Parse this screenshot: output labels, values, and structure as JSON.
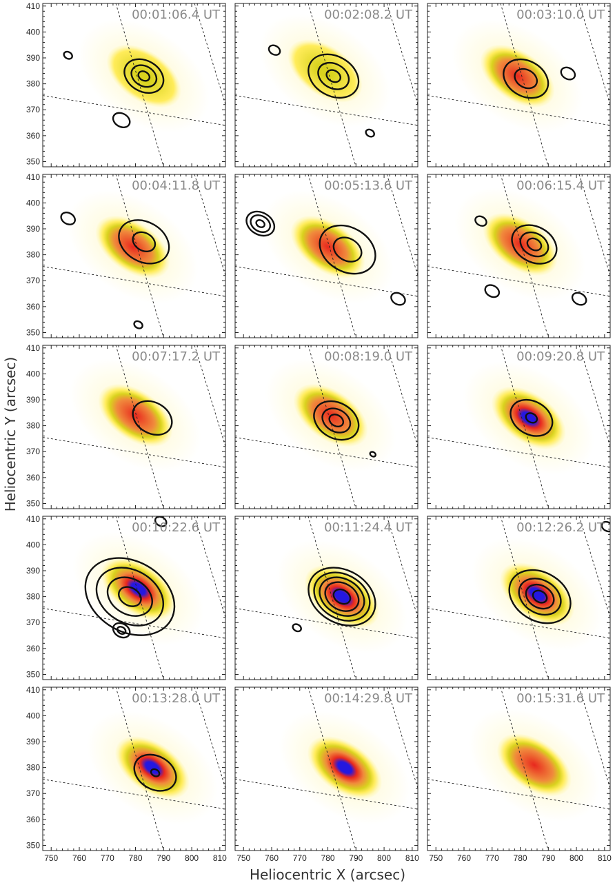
{
  "figure": {
    "xlabel": "Heliocentric X (arcsec)",
    "ylabel": "Heliocentric Y (arcsec)",
    "xticks": [
      "750",
      "760",
      "770",
      "780",
      "790",
      "800",
      "810"
    ],
    "yticks": [
      "410",
      "400",
      "390",
      "380",
      "370",
      "360",
      "350"
    ],
    "colormap": [
      "#ffffff",
      "#fff8c0",
      "#ffec5a",
      "#d9d21e",
      "#f08a3c",
      "#e8281e",
      "#2418e0"
    ],
    "panels": [
      {
        "time": "00:01:06.4 UT",
        "blob": {
          "cx": 783,
          "cy": 383,
          "peak": 0.15
        },
        "contours": [
          {
            "cx": 783,
            "cy": 383,
            "r": [
              2,
              4.5,
              7
            ]
          },
          {
            "cx": 756,
            "cy": 391,
            "r": [
              1.5
            ]
          },
          {
            "cx": 775,
            "cy": 366,
            "r": [
              3
            ]
          }
        ]
      },
      {
        "time": "00:02:08.2 UT",
        "blob": {
          "cx": 779,
          "cy": 385,
          "peak": 0.3
        },
        "contours": [
          {
            "cx": 782,
            "cy": 383,
            "r": [
              2.5,
              5.5,
              9
            ]
          },
          {
            "cx": 761,
            "cy": 393,
            "r": [
              2
            ]
          },
          {
            "cx": 795,
            "cy": 361,
            "r": [
              1.5
            ]
          }
        ]
      },
      {
        "time": "00:03:10.0 UT",
        "blob": {
          "cx": 779,
          "cy": 383,
          "peak": 0.68
        },
        "contours": [
          {
            "cx": 782,
            "cy": 382,
            "r": [
              4,
              8
            ]
          },
          {
            "cx": 797,
            "cy": 384,
            "r": [
              2.5
            ]
          }
        ]
      },
      {
        "time": "00:04:11.8 UT",
        "blob": {
          "cx": 779,
          "cy": 383,
          "peak": 0.72
        },
        "contours": [
          {
            "cx": 783,
            "cy": 385,
            "r": [
              4,
              9
            ]
          },
          {
            "cx": 756,
            "cy": 394,
            "r": [
              2.5
            ]
          },
          {
            "cx": 781,
            "cy": 353,
            "r": [
              1.5
            ]
          }
        ]
      },
      {
        "time": "00:05:13.6 UT",
        "blob": {
          "cx": 780,
          "cy": 383,
          "peak": 0.72
        },
        "contours": [
          {
            "cx": 787,
            "cy": 382,
            "r": [
              5,
              10
            ]
          },
          {
            "cx": 756,
            "cy": 392,
            "r": [
              1.5,
              3.5,
              5
            ]
          },
          {
            "cx": 805,
            "cy": 363,
            "r": [
              2.5
            ]
          }
        ]
      },
      {
        "time": "00:06:15.4 UT",
        "blob": {
          "cx": 780,
          "cy": 384,
          "peak": 0.74
        },
        "contours": [
          {
            "cx": 785,
            "cy": 384,
            "r": [
              2.5,
              5,
              8
            ]
          },
          {
            "cx": 766,
            "cy": 393,
            "r": [
              2
            ]
          },
          {
            "cx": 770,
            "cy": 366,
            "r": [
              2.5
            ]
          },
          {
            "cx": 801,
            "cy": 363,
            "r": [
              2.5
            ]
          }
        ]
      },
      {
        "time": "00:07:17.2 UT",
        "blob": {
          "cx": 780,
          "cy": 384,
          "peak": 0.86
        },
        "contours": [
          {
            "cx": 786,
            "cy": 383,
            "r": [
              7
            ]
          }
        ]
      },
      {
        "time": "00:08:19.0 UT",
        "blob": {
          "cx": 781,
          "cy": 384,
          "peak": 0.82
        },
        "contours": [
          {
            "cx": 783,
            "cy": 382,
            "r": [
              2.5,
              5,
              8
            ]
          },
          {
            "cx": 796,
            "cy": 369,
            "r": [
              1
            ]
          }
        ]
      },
      {
        "time": "00:09:20.8 UT",
        "blob": {
          "cx": 783,
          "cy": 383,
          "peak": 0.9
        },
        "contours": [
          {
            "cx": 784,
            "cy": 383,
            "r": [
              2,
              7.5
            ]
          }
        ]
      },
      {
        "time": "00:10:22.6 UT",
        "blob": {
          "cx": 781,
          "cy": 383,
          "peak": 0.88
        },
        "contours": [
          {
            "cx": 778,
            "cy": 380,
            "r": [
              4,
              8,
              12,
              16
            ]
          },
          {
            "cx": 775,
            "cy": 367,
            "r": [
              1.5,
              3
            ]
          },
          {
            "cx": 789,
            "cy": 409,
            "r": [
              2
            ]
          }
        ]
      },
      {
        "time": "00:11:24.4 UT",
        "blob": {
          "cx": 785,
          "cy": 380,
          "peak": 1.0
        },
        "contours": [
          {
            "cx": 785,
            "cy": 380,
            "r": [
              3,
              6,
              8,
              10,
              12
            ]
          },
          {
            "cx": 769,
            "cy": 368,
            "r": [
              1.5
            ]
          }
        ]
      },
      {
        "time": "00:12:26.2 UT",
        "blob": {
          "cx": 786,
          "cy": 381,
          "peak": 1.0
        },
        "contours": [
          {
            "cx": 787,
            "cy": 380,
            "r": [
              2.5,
              5,
              7.5,
              11
            ]
          },
          {
            "cx": 811,
            "cy": 407,
            "r": [
              2
            ]
          }
        ]
      },
      {
        "time": "00:13:28.0 UT",
        "blob": {
          "cx": 786,
          "cy": 380,
          "peak": 0.98
        },
        "contours": [
          {
            "cx": 787,
            "cy": 378,
            "r": [
              1.5,
              7.5
            ]
          }
        ]
      },
      {
        "time": "00:14:29.8 UT",
        "blob": {
          "cx": 786,
          "cy": 380,
          "peak": 0.96
        },
        "contours": []
      },
      {
        "time": "00:15:31.6 UT",
        "blob": {
          "cx": 785,
          "cy": 381,
          "peak": 0.72
        },
        "contours": []
      }
    ]
  }
}
